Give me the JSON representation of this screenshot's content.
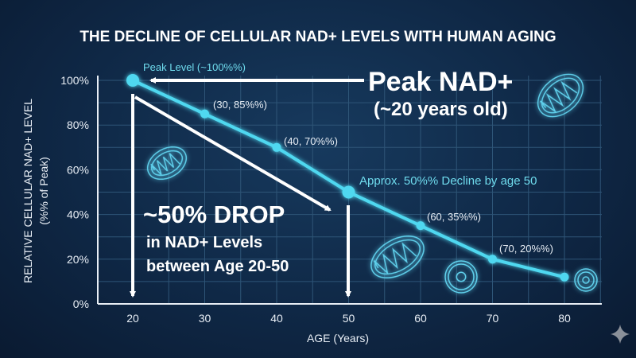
{
  "chart_data": {
    "type": "line",
    "title": "THE DECLINE OF CELLULAR NAD+ LEVELS WITH HUMAN AGING",
    "xlabel": "AGE (Years)",
    "ylabel": "RELATIVE CELLULAR NAD+ LEVEL",
    "ylabel_sub": "(%% of Peak)",
    "x": [
      20,
      30,
      40,
      50,
      60,
      70,
      80
    ],
    "y": [
      100,
      85,
      70,
      50,
      35,
      20,
      12
    ],
    "xlim": [
      15,
      85
    ],
    "ylim": [
      0,
      100
    ],
    "xticks": [
      "20",
      "30",
      "40",
      "50",
      "60",
      "70",
      "80"
    ],
    "yticks": [
      "0%",
      "20%",
      "40%",
      "60%",
      "80%",
      "100%"
    ],
    "grid": true,
    "line_color": "#4fd8f0",
    "point_labels": {
      "peak": "Peak Level (~100%%)",
      "p30": "(30, 85%%)",
      "p40": "(40, 70%%)",
      "p50": "Approx. 50%% Decline by age 50",
      "p60": "(60, 35%%)",
      "p70": "(70, 20%%)"
    },
    "annotations": {
      "peak_title": "Peak NAD+",
      "peak_sub": "(~20 years old)",
      "drop_title": "~50% DROP",
      "drop_line1": "in NAD+ Levels",
      "drop_line2": "between Age 20-50"
    }
  },
  "icons": [
    "mitochondria-icon",
    "cell-icon",
    "sparkle-icon"
  ]
}
